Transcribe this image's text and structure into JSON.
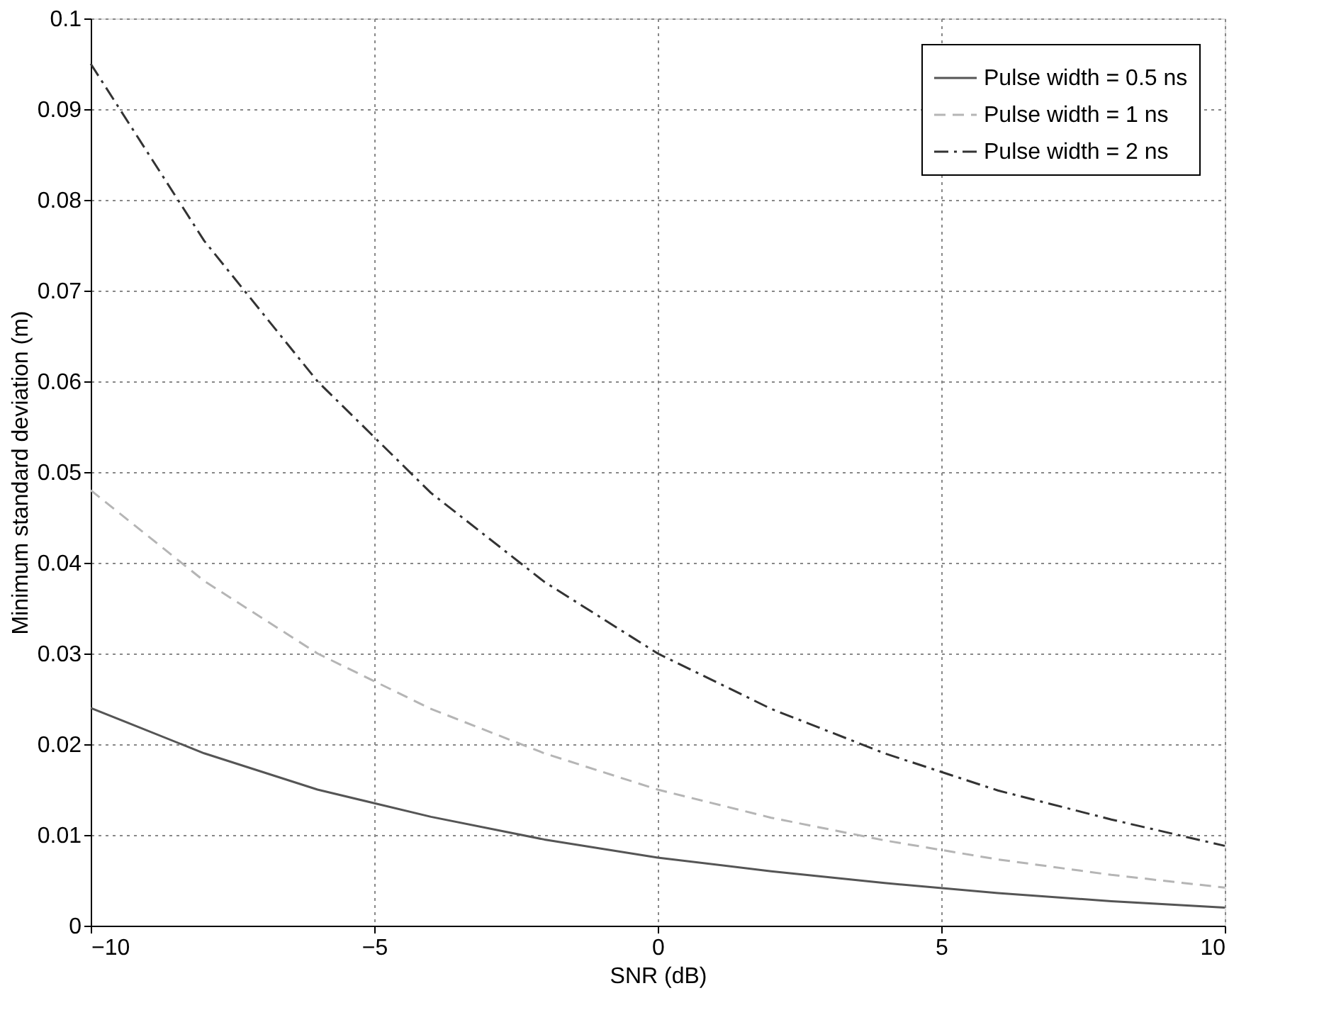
{
  "chart_data": {
    "type": "line",
    "xlabel": "SNR (dB)",
    "ylabel": "Minimum standard deviation (m)",
    "x": [
      -10,
      -8,
      -6,
      -4,
      -2,
      0,
      2,
      4,
      6,
      8,
      10
    ],
    "series": [
      {
        "name": "Pulse width = 0.5 ns",
        "color": "#555555",
        "line_style": "solid",
        "values": [
          0.024,
          0.019,
          0.015,
          0.012,
          0.0095,
          0.0075,
          0.006,
          0.0047,
          0.0036,
          0.0027,
          0.002
        ]
      },
      {
        "name": "Pulse width = 1 ns",
        "color": "#b5b5b5",
        "line_style": "dashed",
        "values": [
          0.048,
          0.038,
          0.03,
          0.0239,
          0.019,
          0.015,
          0.0119,
          0.0094,
          0.0073,
          0.0056,
          0.0042
        ]
      },
      {
        "name": "Pulse width = 2 ns",
        "color": "#333333",
        "line_style": "dashdot",
        "values": [
          0.095,
          0.0755,
          0.06,
          0.0477,
          0.0379,
          0.03,
          0.0239,
          0.019,
          0.0149,
          0.0117,
          0.0088
        ]
      }
    ],
    "xlim": [
      -10,
      10
    ],
    "xticks": [
      -10,
      -5,
      0,
      5,
      10
    ],
    "ylim": [
      0,
      0.1
    ],
    "yticks": [
      0,
      0.01,
      0.02,
      0.03,
      0.04,
      0.05,
      0.06,
      0.07,
      0.08,
      0.09,
      0.1
    ],
    "grid": true,
    "legend": "top right",
    "marker": "none"
  }
}
